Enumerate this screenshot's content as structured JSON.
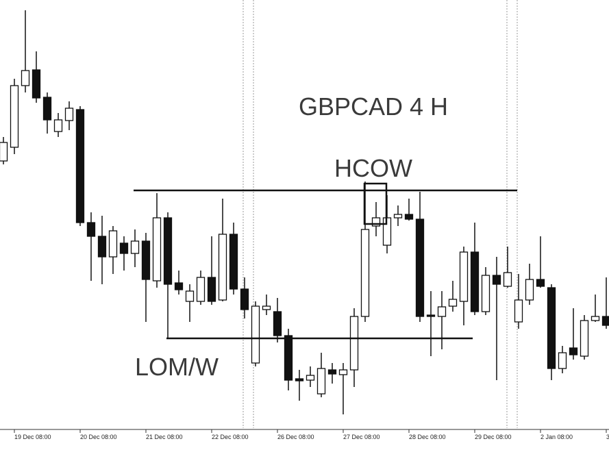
{
  "chart_data": {
    "type": "candlestick",
    "title": "GBPCAD 4 H",
    "annotations": [
      "HCOW",
      "LOM/W"
    ],
    "categories": [
      null,
      "19 Dec 08:00",
      null,
      null,
      null,
      null,
      null,
      "20 Dec 08:00",
      null,
      null,
      null,
      null,
      null,
      "21 Dec 08:00",
      null,
      null,
      null,
      null,
      null,
      "22 Dec 08:00",
      null,
      null,
      null,
      null,
      null,
      "26 Dec 08:00",
      null,
      null,
      null,
      null,
      null,
      "27 Dec 08:00",
      null,
      null,
      null,
      null,
      null,
      "28 Dec 08:00",
      null,
      null,
      null,
      null,
      null,
      "29 Dec 08:00",
      null,
      null,
      null,
      null,
      null,
      "2 Jan 08:00",
      null,
      null,
      null,
      null,
      null,
      "3"
    ],
    "open": [
      385,
      405,
      495,
      518,
      478,
      428,
      444,
      460,
      295,
      275,
      245,
      265,
      250,
      268,
      210,
      302,
      207,
      180,
      180,
      215,
      182,
      278,
      198,
      90,
      168,
      165,
      130,
      67,
      65,
      45,
      80,
      73,
      80,
      158,
      290,
      262,
      302,
      307,
      300,
      160,
      158,
      173,
      180,
      252,
      165,
      218,
      202,
      150,
      182,
      212,
      200,
      82,
      112,
      100,
      152,
      158
    ],
    "high": [
      420,
      505,
      605,
      545,
      485,
      455,
      472,
      465,
      310,
      305,
      290,
      275,
      285,
      280,
      338,
      310,
      225,
      205,
      225,
      275,
      330,
      295,
      215,
      180,
      190,
      185,
      140,
      80,
      85,
      105,
      90,
      90,
      170,
      355,
      325,
      335,
      320,
      330,
      340,
      195,
      195,
      210,
      260,
      295,
      230,
      245,
      260,
      220,
      235,
      275,
      205,
      115,
      170,
      160,
      190,
      215
    ],
    "low": [
      380,
      395,
      485,
      470,
      425,
      420,
      430,
      290,
      210,
      205,
      220,
      225,
      230,
      150,
      200,
      125,
      190,
      150,
      175,
      175,
      180,
      190,
      155,
      85,
      160,
      120,
      50,
      35,
      55,
      40,
      60,
      15,
      55,
      150,
      275,
      250,
      290,
      298,
      150,
      100,
      110,
      165,
      145,
      160,
      160,
      65,
      200,
      140,
      175,
      200,
      65,
      75,
      95,
      95,
      150,
      140
    ],
    "close": [
      412,
      495,
      517,
      477,
      445,
      445,
      462,
      295,
      275,
      245,
      283,
      250,
      268,
      212,
      302,
      205,
      197,
      195,
      215,
      180,
      278,
      198,
      168,
      173,
      173,
      130,
      65,
      64,
      72,
      82,
      74,
      80,
      158,
      285,
      302,
      302,
      307,
      300,
      158,
      158,
      172,
      183,
      252,
      165,
      218,
      205,
      222,
      182,
      212,
      202,
      82,
      105,
      102,
      152,
      158,
      145
    ],
    "ylim": [
      0,
      620
    ]
  }
}
